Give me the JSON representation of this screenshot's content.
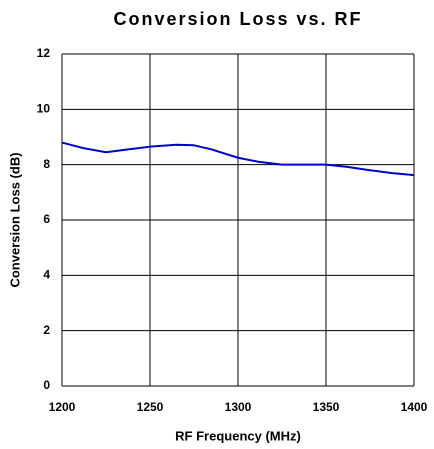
{
  "chart_data": {
    "type": "line",
    "title": "Conversion Loss vs. RF",
    "x_label": "RF Frequency (MHz)",
    "y_label": "Conversion Loss (dB)",
    "x": [
      1200,
      1212,
      1225,
      1237,
      1250,
      1265,
      1275,
      1285,
      1300,
      1312,
      1325,
      1350,
      1362,
      1375,
      1387,
      1400
    ],
    "series": [
      {
        "name": "Conversion Loss",
        "color": "#0000cc",
        "values": [
          8.8,
          8.6,
          8.45,
          8.55,
          8.65,
          8.72,
          8.7,
          8.55,
          8.25,
          8.1,
          8.0,
          8.0,
          7.92,
          7.8,
          7.7,
          7.62
        ]
      }
    ],
    "xlim": [
      1200,
      1400
    ],
    "xticks": [
      1200,
      1250,
      1300,
      1350,
      1400
    ],
    "ylim": [
      0,
      12
    ],
    "yticks": [
      0,
      2,
      4,
      6,
      8,
      10,
      12
    ],
    "grid": true
  }
}
